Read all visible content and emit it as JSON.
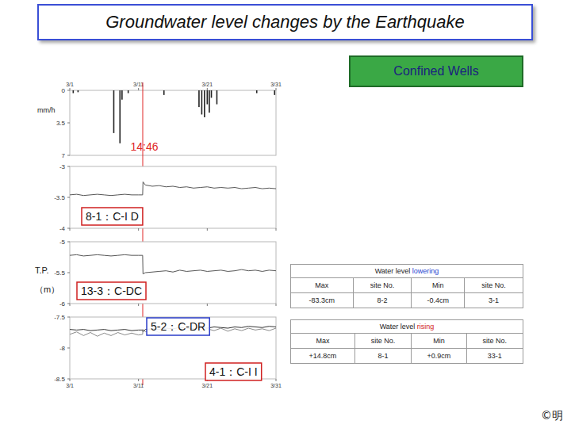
{
  "title": "Groundwater level changes by the Earthquake",
  "badge": "Confined Wells",
  "y_axis_label": [
    "T.P.",
    "（m）"
  ],
  "copyright": "©明",
  "tables": [
    {
      "title": "Water level",
      "emphasis": "lowering",
      "color": "#1f45d0",
      "header": [
        "Max",
        "site No.",
        "Min",
        "site No."
      ],
      "rows": [
        [
          "-83.3cm",
          "8-2",
          "-0.4cm",
          "3-1"
        ]
      ]
    },
    {
      "title": "Water level",
      "emphasis": "rising",
      "color": "#d02020",
      "header": [
        "Max",
        "site No.",
        "Min",
        "site No."
      ],
      "rows": [
        [
          "+14.8cm",
          "8-1",
          "+0.9cm",
          "33-1"
        ]
      ]
    }
  ],
  "chart_data": [
    {
      "type": "bar",
      "y_label": "mm/h",
      "color": "#222222",
      "x": [
        1.5,
        2.2,
        7.4,
        8.3,
        8.6,
        9.5,
        14.7,
        19.8,
        20.2,
        20.6,
        21.0,
        21.3,
        21.6,
        22.4,
        28.2,
        30.8
      ],
      "values": [
        0.3,
        0.2,
        4.6,
        5.7,
        1.0,
        0.3,
        0.5,
        1.8,
        2.6,
        2.9,
        1.5,
        2.4,
        0.8,
        1.5,
        0.3,
        0.5
      ],
      "xlim": [
        1,
        31
      ],
      "xticks": [
        {
          "value": 1,
          "label": "3/1"
        },
        {
          "value": 11,
          "label": "3/11"
        },
        {
          "value": 21,
          "label": "3/21"
        },
        {
          "value": 31,
          "label": "3/31"
        }
      ],
      "ylim": [
        7,
        0
      ],
      "yticks": [
        0,
        3.5,
        7
      ],
      "annotations": [
        {
          "x": 11.615,
          "label": "14:46",
          "color": "#e02828"
        }
      ]
    },
    {
      "type": "line",
      "tick_labels": "y",
      "x": [
        1,
        2,
        3,
        4,
        5,
        6,
        7,
        8,
        9,
        10,
        11,
        11.6,
        11.65,
        12,
        13,
        14,
        15,
        16,
        17,
        18,
        19,
        20,
        21,
        22,
        23,
        24,
        25,
        26,
        27,
        28,
        29,
        30,
        31
      ],
      "series": [
        {
          "name": "8-1：C-I D",
          "color": "#555555",
          "values": [
            -3.46,
            -3.45,
            -3.47,
            -3.46,
            -3.45,
            -3.46,
            -3.47,
            -3.46,
            -3.45,
            -3.46,
            -3.46,
            -3.46,
            -3.25,
            -3.3,
            -3.32,
            -3.31,
            -3.33,
            -3.32,
            -3.34,
            -3.33,
            -3.35,
            -3.34,
            -3.33,
            -3.35,
            -3.34,
            -3.35,
            -3.34,
            -3.36,
            -3.35,
            -3.34,
            -3.36,
            -3.35,
            -3.36
          ]
        }
      ],
      "xlim": [
        1,
        31
      ],
      "xticks": [
        {
          "value": 1,
          "label": "3/1"
        },
        {
          "value": 11,
          "label": "3/11"
        },
        {
          "value": 21,
          "label": "3/21"
        },
        {
          "value": 31,
          "label": "3/31"
        }
      ],
      "ylim": [
        -4,
        -3
      ],
      "yticks": [
        -3,
        -3.5,
        -4
      ]
    },
    {
      "type": "line",
      "tick_labels": "y",
      "x": [
        1,
        2,
        3,
        4,
        5,
        6,
        7,
        8,
        9,
        10,
        11,
        11.6,
        11.65,
        12,
        13,
        14,
        15,
        16,
        17,
        18,
        19,
        20,
        21,
        22,
        23,
        24,
        25,
        26,
        27,
        28,
        29,
        30,
        31
      ],
      "series": [
        {
          "name": "13-3：C-DC",
          "color": "#555555",
          "values": [
            -5.22,
            -5.21,
            -5.23,
            -5.22,
            -5.21,
            -5.22,
            -5.23,
            -5.22,
            -5.21,
            -5.22,
            -5.22,
            -5.22,
            -5.52,
            -5.5,
            -5.49,
            -5.48,
            -5.47,
            -5.49,
            -5.46,
            -5.48,
            -5.47,
            -5.46,
            -5.48,
            -5.47,
            -5.46,
            -5.48,
            -5.47,
            -5.45,
            -5.47,
            -5.46,
            -5.48,
            -5.46,
            -5.47
          ]
        }
      ],
      "xlim": [
        1,
        31
      ],
      "xticks": [
        {
          "value": 1,
          "label": "3/1"
        },
        {
          "value": 11,
          "label": "3/11"
        },
        {
          "value": 21,
          "label": "3/21"
        },
        {
          "value": 31,
          "label": "3/31"
        }
      ],
      "ylim": [
        -6,
        -5
      ],
      "yticks": [
        -5,
        -5.5,
        -6
      ]
    },
    {
      "type": "line",
      "x": [
        1,
        2,
        3,
        4,
        5,
        6,
        7,
        8,
        9,
        10,
        11,
        11.6,
        11.65,
        12,
        13,
        14,
        15,
        16,
        17,
        18,
        19,
        20,
        21,
        22,
        23,
        24,
        25,
        26,
        27,
        28,
        29,
        30,
        31
      ],
      "series": [
        {
          "name": "5-2：C-DR",
          "color": "#333333",
          "values": [
            -7.7,
            -7.71,
            -7.7,
            -7.72,
            -7.71,
            -7.7,
            -7.72,
            -7.71,
            -7.7,
            -7.72,
            -7.71,
            -7.71,
            -7.74,
            -7.7,
            -7.69,
            -7.7,
            -7.68,
            -7.69,
            -7.67,
            -7.68,
            -7.69,
            -7.67,
            -7.68,
            -7.66,
            -7.67,
            -7.68,
            -7.66,
            -7.67,
            -7.65,
            -7.66,
            -7.67,
            -7.65,
            -7.66
          ]
        },
        {
          "name": "4-1：C-I I",
          "color": "#8a8a8a",
          "values": [
            -7.78,
            -7.74,
            -7.8,
            -7.75,
            -7.81,
            -7.76,
            -7.8,
            -7.75,
            -7.79,
            -7.76,
            -7.79,
            -7.78,
            -7.7,
            -7.74,
            -7.7,
            -7.75,
            -7.71,
            -7.74,
            -7.69,
            -7.73,
            -7.7,
            -7.74,
            -7.69,
            -7.72,
            -7.68,
            -7.73,
            -7.69,
            -7.72,
            -7.68,
            -7.71,
            -7.69,
            -7.72,
            -7.68
          ]
        }
      ],
      "xlim": [
        1,
        31
      ],
      "xticks": [
        {
          "value": 1,
          "label": "3/1"
        },
        {
          "value": 11,
          "label": "3/11"
        },
        {
          "value": 21,
          "label": "3/21"
        },
        {
          "value": 31,
          "label": "3/31"
        }
      ],
      "ylim": [
        -8.5,
        -7.5
      ],
      "yticks": [
        -7.5,
        -8,
        -8.5
      ]
    }
  ]
}
